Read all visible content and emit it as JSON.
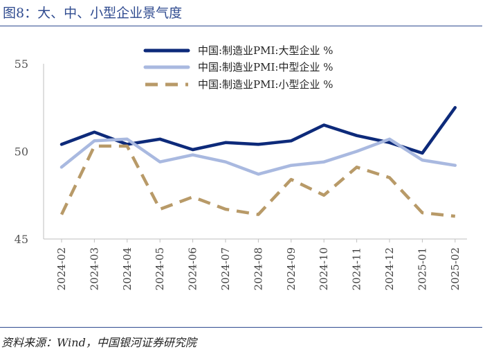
{
  "page": {
    "title": "图8：大、中、小型企业景气度",
    "source": "资料来源：Wind，中国银河证券研究院"
  },
  "chart_data": {
    "type": "line",
    "title": "图8：大、中、小型企业景气度",
    "categories": [
      "2024-02",
      "2024-03",
      "2024-04",
      "2024-05",
      "2024-06",
      "2024-07",
      "2024-08",
      "2024-09",
      "2024-10",
      "2024-11",
      "2024-12",
      "2025-01",
      "2025-02"
    ],
    "ylim": [
      45,
      55
    ],
    "yticks": [
      45,
      50,
      55
    ],
    "grid": false,
    "legend_position": "top-right",
    "series": [
      {
        "name": "中国:制造业PMI:大型企业 %",
        "color": "#0d2a7a",
        "dash": "solid",
        "values": [
          50.4,
          51.1,
          50.4,
          50.7,
          50.1,
          50.5,
          50.4,
          50.6,
          51.5,
          50.9,
          50.5,
          49.9,
          52.5
        ]
      },
      {
        "name": "中国:制造业PMI:中型企业 %",
        "color": "#a9b9e0",
        "dash": "solid",
        "values": [
          49.1,
          50.6,
          50.7,
          49.4,
          49.8,
          49.4,
          48.7,
          49.2,
          49.4,
          50.0,
          50.7,
          49.5,
          49.2
        ]
      },
      {
        "name": "中国:制造业PMI:小型企业 %",
        "color": "#b89a68",
        "dash": "dashed",
        "values": [
          46.4,
          50.3,
          50.3,
          46.7,
          47.4,
          46.7,
          46.4,
          48.4,
          47.5,
          49.1,
          48.5,
          46.5,
          46.3
        ]
      }
    ]
  }
}
